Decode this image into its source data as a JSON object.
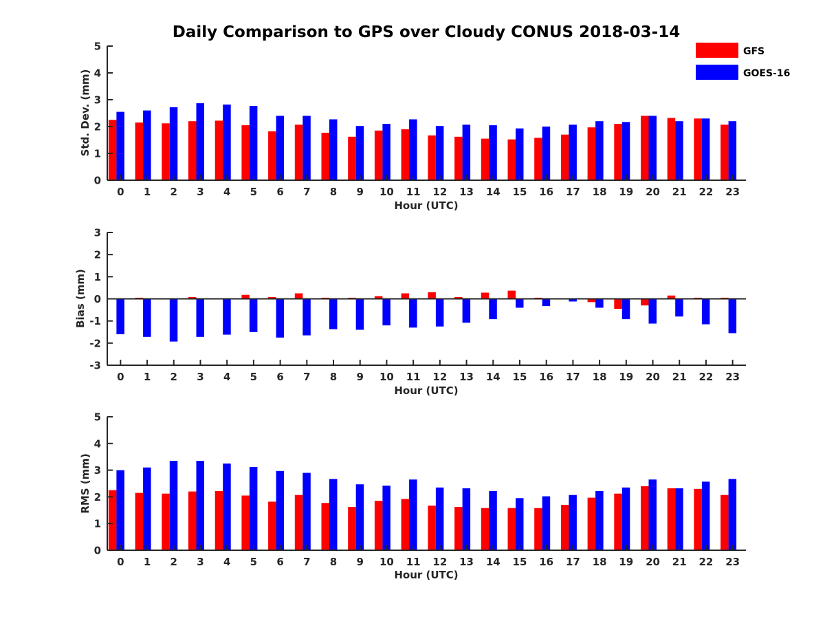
{
  "page_title": "Daily Comparison to GPS over Cloudy CONUS 2018-03-14",
  "legend": [
    {
      "label": "GFS",
      "color": "#ff0000"
    },
    {
      "label": "GOES-16",
      "color": "#0000ff"
    }
  ],
  "chart_data": [
    {
      "type": "bar",
      "ylabel": "Std. Dev. (mm)",
      "xlabel": "Hour (UTC)",
      "ylim": [
        0,
        5
      ],
      "yticks": [
        "0",
        "1",
        "2",
        "3",
        "4",
        "5"
      ],
      "categories": [
        "0",
        "1",
        "2",
        "3",
        "4",
        "5",
        "6",
        "7",
        "8",
        "9",
        "10",
        "11",
        "12",
        "13",
        "14",
        "15",
        "16",
        "17",
        "18",
        "19",
        "20",
        "21",
        "22",
        "23"
      ],
      "series": [
        {
          "name": "GFS",
          "values": [
            2.25,
            2.15,
            2.12,
            2.2,
            2.22,
            2.05,
            1.82,
            2.07,
            1.77,
            1.62,
            1.85,
            1.9,
            1.67,
            1.62,
            1.55,
            1.52,
            1.58,
            1.7,
            1.97,
            2.1,
            2.4,
            2.32,
            2.3,
            2.07
          ]
        },
        {
          "name": "GOES-16",
          "values": [
            2.55,
            2.6,
            2.72,
            2.87,
            2.82,
            2.77,
            2.4,
            2.4,
            2.27,
            2.02,
            2.1,
            2.27,
            2.02,
            2.07,
            2.05,
            1.93,
            2.0,
            2.07,
            2.2,
            2.17,
            2.4,
            2.2,
            2.3,
            2.2
          ]
        }
      ]
    },
    {
      "type": "bar",
      "ylabel": "Bias (mm)",
      "xlabel": "Hour (UTC)",
      "ylim": [
        -3,
        3
      ],
      "yticks": [
        "-3",
        "-2",
        "-1",
        "0",
        "1",
        "2",
        "3"
      ],
      "categories": [
        "0",
        "1",
        "2",
        "3",
        "4",
        "5",
        "6",
        "7",
        "8",
        "9",
        "10",
        "11",
        "12",
        "13",
        "14",
        "15",
        "16",
        "17",
        "18",
        "19",
        "20",
        "21",
        "22",
        "23"
      ],
      "series": [
        {
          "name": "GFS",
          "values": [
            0.0,
            0.05,
            0.0,
            0.08,
            0.0,
            0.18,
            0.08,
            0.25,
            0.05,
            0.05,
            0.12,
            0.25,
            0.3,
            0.08,
            0.28,
            0.37,
            0.05,
            0.03,
            -0.15,
            -0.45,
            -0.3,
            0.15,
            0.05,
            0.05
          ]
        },
        {
          "name": "GOES-16",
          "values": [
            -1.6,
            -1.72,
            -1.93,
            -1.72,
            -1.62,
            -1.5,
            -1.75,
            -1.65,
            -1.37,
            -1.4,
            -1.2,
            -1.3,
            -1.25,
            -1.08,
            -0.92,
            -0.4,
            -0.33,
            -0.12,
            -0.4,
            -0.92,
            -1.12,
            -0.8,
            -1.15,
            -1.55
          ]
        }
      ]
    },
    {
      "type": "bar",
      "ylabel": "RMS (mm)",
      "xlabel": "Hour (UTC)",
      "ylim": [
        0,
        5
      ],
      "yticks": [
        "0",
        "1",
        "2",
        "3",
        "4",
        "5"
      ],
      "categories": [
        "0",
        "1",
        "2",
        "3",
        "4",
        "5",
        "6",
        "7",
        "8",
        "9",
        "10",
        "11",
        "12",
        "13",
        "14",
        "15",
        "16",
        "17",
        "18",
        "19",
        "20",
        "21",
        "22",
        "23"
      ],
      "series": [
        {
          "name": "GFS",
          "values": [
            2.25,
            2.15,
            2.12,
            2.2,
            2.22,
            2.05,
            1.82,
            2.07,
            1.77,
            1.62,
            1.85,
            1.92,
            1.67,
            1.62,
            1.58,
            1.58,
            1.58,
            1.7,
            1.97,
            2.12,
            2.4,
            2.32,
            2.3,
            2.07
          ]
        },
        {
          "name": "GOES-16",
          "values": [
            3.0,
            3.1,
            3.35,
            3.35,
            3.25,
            3.12,
            2.97,
            2.9,
            2.67,
            2.47,
            2.42,
            2.65,
            2.35,
            2.32,
            2.22,
            1.95,
            2.02,
            2.07,
            2.22,
            2.35,
            2.65,
            2.32,
            2.57,
            2.67
          ]
        }
      ]
    }
  ]
}
